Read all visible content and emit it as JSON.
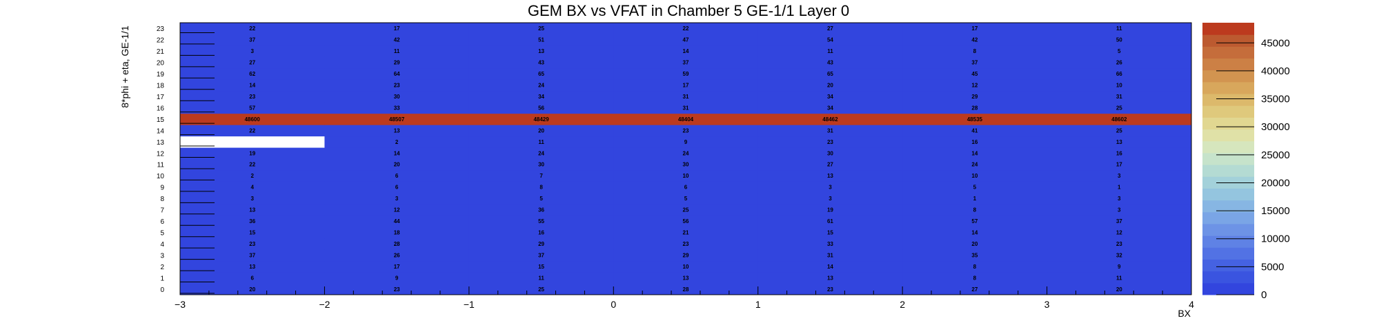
{
  "chart_data": {
    "type": "heatmap",
    "title": "GEM BX vs VFAT in Chamber 5 GE-1/1 Layer 0",
    "xlabel": "BX",
    "ylabel": "8*phi + eta, GE-1/1",
    "xlim": [
      -3,
      4
    ],
    "ylim": [
      0,
      24
    ],
    "x_ticks": [
      "−3",
      "−2",
      "−1",
      "0",
      "1",
      "2",
      "3",
      "4"
    ],
    "y_ticks": [
      "0",
      "1",
      "2",
      "3",
      "4",
      "5",
      "6",
      "7",
      "8",
      "9",
      "10",
      "11",
      "12",
      "13",
      "14",
      "15",
      "16",
      "17",
      "18",
      "19",
      "20",
      "21",
      "22",
      "23"
    ],
    "x_bins": [
      -2.5,
      -1.5,
      -0.5,
      0.5,
      1.5,
      2.5,
      3.5
    ],
    "y_bins": [
      0,
      1,
      2,
      3,
      4,
      5,
      6,
      7,
      8,
      9,
      10,
      11,
      12,
      13,
      14,
      15,
      16,
      17,
      18,
      19,
      20,
      21,
      22,
      23
    ],
    "values": [
      [
        20,
        23,
        25,
        28,
        23,
        27,
        20
      ],
      [
        6,
        9,
        11,
        13,
        13,
        8,
        11
      ],
      [
        13,
        17,
        15,
        10,
        14,
        8,
        9
      ],
      [
        37,
        26,
        37,
        29,
        31,
        35,
        32
      ],
      [
        23,
        28,
        29,
        23,
        33,
        20,
        23
      ],
      [
        15,
        18,
        16,
        21,
        15,
        14,
        12
      ],
      [
        36,
        44,
        55,
        56,
        61,
        57,
        37
      ],
      [
        13,
        12,
        36,
        25,
        19,
        8,
        3
      ],
      [
        3,
        3,
        5,
        5,
        3,
        1,
        3
      ],
      [
        4,
        6,
        8,
        6,
        3,
        5,
        1
      ],
      [
        2,
        6,
        7,
        10,
        13,
        10,
        3
      ],
      [
        22,
        20,
        30,
        30,
        27,
        24,
        17
      ],
      [
        19,
        14,
        24,
        24,
        30,
        14,
        16
      ],
      [
        null,
        2,
        11,
        9,
        23,
        16,
        13
      ],
      [
        22,
        13,
        20,
        23,
        31,
        41,
        25
      ],
      [
        48600,
        48507,
        48429,
        48404,
        48462,
        48535,
        48602
      ],
      [
        57,
        33,
        56,
        31,
        34,
        28,
        25
      ],
      [
        23,
        30,
        34,
        31,
        34,
        29,
        31
      ],
      [
        14,
        23,
        24,
        17,
        20,
        12,
        10
      ],
      [
        62,
        64,
        65,
        59,
        65,
        45,
        66
      ],
      [
        27,
        29,
        43,
        37,
        43,
        37,
        26
      ],
      [
        3,
        11,
        13,
        14,
        11,
        8,
        5
      ],
      [
        37,
        42,
        51,
        47,
        54,
        42,
        50
      ],
      [
        22,
        17,
        25,
        22,
        27,
        17,
        11
      ]
    ],
    "zlim": [
      0,
      48602
    ],
    "colorbar_ticks": [
      "0",
      "5000",
      "10000",
      "15000",
      "20000",
      "25000",
      "30000",
      "35000",
      "40000",
      "45000"
    ],
    "colorbar_values": [
      0,
      5000,
      10000,
      15000,
      20000,
      25000,
      30000,
      35000,
      40000,
      45000
    ],
    "colors": {
      "low": "#3245de",
      "high": "#bc3a1e",
      "empty": "#ffffff"
    },
    "palette": [
      "#3245de",
      "#3a54e0",
      "#4562e2",
      "#5272e4",
      "#5f82e5",
      "#6d93e6",
      "#7aa5e6",
      "#87b6e3",
      "#94c5df",
      "#a3d1da",
      "#b4dbd3",
      "#c6e3cb",
      "#d6e6bd",
      "#e0e1a7",
      "#e1d791",
      "#dfc97c",
      "#dcb96b",
      "#d8a75c",
      "#d29450",
      "#cc8045",
      "#c56d3b",
      "#bc5a30",
      "#bc3a1e"
    ]
  }
}
